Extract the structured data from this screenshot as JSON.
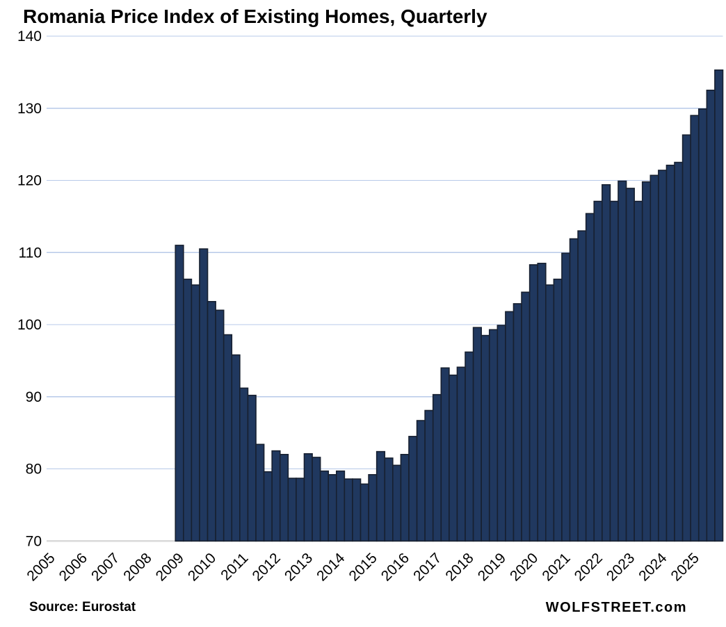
{
  "title": "Romania Price Index of Existing Homes, Quarterly",
  "footer": {
    "source_label": "Source: Eurostat",
    "brand_label": "WOLFSTREET.com"
  },
  "chart_data": {
    "type": "bar",
    "title": "Romania Price Index of Existing Homes, Quarterly",
    "xlabel": "",
    "ylabel": "",
    "ylim": [
      70,
      140
    ],
    "yticks": [
      70,
      80,
      90,
      100,
      110,
      120,
      130,
      140
    ],
    "grid": true,
    "legend": "none",
    "x_year_labels": [
      "2005",
      "2006",
      "2007",
      "2008",
      "2009",
      "2010",
      "2011",
      "2012",
      "2013",
      "2014",
      "2015",
      "2016",
      "2017",
      "2018",
      "2019",
      "2020",
      "2021",
      "2022",
      "2023",
      "2024",
      "2025"
    ],
    "data_starts_at": "2009 Q1",
    "categories": [
      "2009Q1",
      "2009Q2",
      "2009Q3",
      "2009Q4",
      "2010Q1",
      "2010Q2",
      "2010Q3",
      "2010Q4",
      "2011Q1",
      "2011Q2",
      "2011Q3",
      "2011Q4",
      "2012Q1",
      "2012Q2",
      "2012Q3",
      "2012Q4",
      "2013Q1",
      "2013Q2",
      "2013Q3",
      "2013Q4",
      "2014Q1",
      "2014Q2",
      "2014Q3",
      "2014Q4",
      "2015Q1",
      "2015Q2",
      "2015Q3",
      "2015Q4",
      "2016Q1",
      "2016Q2",
      "2016Q3",
      "2016Q4",
      "2017Q1",
      "2017Q2",
      "2017Q3",
      "2017Q4",
      "2018Q1",
      "2018Q2",
      "2018Q3",
      "2018Q4",
      "2019Q1",
      "2019Q2",
      "2019Q3",
      "2019Q4",
      "2020Q1",
      "2020Q2",
      "2020Q3",
      "2020Q4",
      "2021Q1",
      "2021Q2",
      "2021Q3",
      "2021Q4",
      "2022Q1",
      "2022Q2",
      "2022Q3",
      "2022Q4",
      "2023Q1",
      "2023Q2",
      "2023Q3",
      "2023Q4",
      "2024Q1",
      "2024Q2",
      "2024Q3",
      "2024Q4",
      "2025Q1",
      "2025Q2",
      "2025Q3",
      "2025Q4"
    ],
    "values": [
      111.0,
      106.3,
      105.5,
      110.5,
      103.2,
      102.0,
      98.6,
      95.8,
      91.2,
      90.2,
      83.4,
      79.6,
      82.5,
      82.0,
      78.7,
      78.7,
      82.1,
      81.6,
      79.7,
      79.2,
      79.7,
      78.6,
      78.6,
      77.9,
      79.2,
      82.4,
      81.5,
      80.5,
      82.0,
      84.5,
      86.7,
      88.1,
      90.3,
      94.0,
      93.0,
      94.1,
      96.2,
      99.6,
      98.5,
      99.3,
      99.9,
      101.8,
      102.9,
      104.5,
      108.3,
      108.5,
      105.5,
      106.3,
      109.9,
      111.9,
      113.0,
      115.4,
      117.1,
      119.4,
      117.1,
      119.9,
      118.9,
      117.1,
      119.8,
      120.7,
      121.4,
      122.1,
      122.5,
      126.3,
      129.0,
      129.9,
      132.5,
      135.3
    ],
    "colors": {
      "bar_fill": "#20385F",
      "bar_border": "#172030",
      "gridline": "#B7C9E8",
      "axis_line": "#D9D9D9",
      "text": "#000000"
    }
  }
}
